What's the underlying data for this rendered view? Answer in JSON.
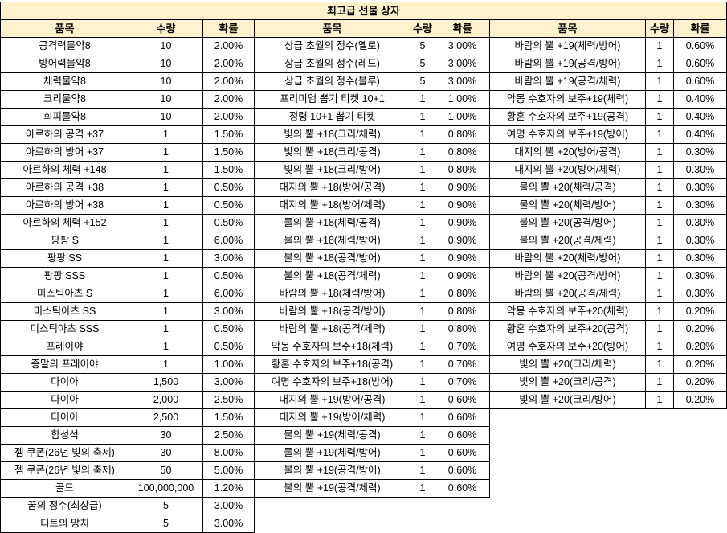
{
  "title": "최고급 선물 상자",
  "colors": {
    "header_bg": "#fff2cc",
    "border": "#000000"
  },
  "headers": {
    "item": "품목",
    "qty": "수량",
    "rate": "확률"
  },
  "groups": [
    {
      "rows": [
        [
          "공격력물약8",
          "10",
          "2.00%"
        ],
        [
          "방어력물약8",
          "10",
          "2.00%"
        ],
        [
          "체력물약8",
          "10",
          "2.00%"
        ],
        [
          "크리물약8",
          "10",
          "2.00%"
        ],
        [
          "회피물약8",
          "10",
          "2.00%"
        ],
        [
          "아르하의 공격 +37",
          "1",
          "1.50%"
        ],
        [
          "아르하의 방어 +37",
          "1",
          "1.50%"
        ],
        [
          "아르하의 체력 +148",
          "1",
          "1.50%"
        ],
        [
          "아르하의 공격 +38",
          "1",
          "0.50%"
        ],
        [
          "아르하의 방어 +38",
          "1",
          "0.50%"
        ],
        [
          "아르하의 체력 +152",
          "1",
          "0.50%"
        ],
        [
          "팡팡 S",
          "1",
          "6.00%"
        ],
        [
          "팡팡 SS",
          "1",
          "3.00%"
        ],
        [
          "팡팡 SSS",
          "1",
          "0.50%"
        ],
        [
          "미스틱아츠 S",
          "1",
          "6.00%"
        ],
        [
          "미스틱아츠 SS",
          "1",
          "3.00%"
        ],
        [
          "미스틱아츠 SSS",
          "1",
          "0.50%"
        ],
        [
          "프레이야",
          "1",
          "0.50%"
        ],
        [
          "종말의 프레이야",
          "1",
          "1.00%"
        ],
        [
          "다이아",
          "1,500",
          "3.00%"
        ],
        [
          "다이아",
          "2,000",
          "2.50%"
        ],
        [
          "다이아",
          "2,500",
          "1.50%"
        ],
        [
          "합성석",
          "30",
          "2.50%"
        ],
        [
          "젬 쿠폰(26년 빛의 축제)",
          "30",
          "8.00%"
        ],
        [
          "젬 쿠폰(26년 빛의 축제)",
          "50",
          "5.00%"
        ],
        [
          "골드",
          "100,000,000",
          "1.20%"
        ],
        [
          "꿈의 정수(최상급)",
          "5",
          "3.00%"
        ],
        [
          "디트의 망치",
          "5",
          "3.00%"
        ]
      ]
    },
    {
      "rows": [
        [
          "상급 초월의 정수(옐로)",
          "5",
          "3.00%"
        ],
        [
          "상급 초월의 정수(레드)",
          "5",
          "3.00%"
        ],
        [
          "상급 초월의 정수(블루)",
          "5",
          "3.00%"
        ],
        [
          "프리미엄 뽑기 티켓 10+1",
          "1",
          "1.00%"
        ],
        [
          "정령 10+1 뽑기 티켓",
          "1",
          "1.00%"
        ],
        [
          "빛의 뿔 +18(크리/체력)",
          "1",
          "0.80%"
        ],
        [
          "빛의 뿔 +18(크리/공격)",
          "1",
          "0.80%"
        ],
        [
          "빛의 뿔 +18(크리/방어)",
          "1",
          "0.80%"
        ],
        [
          "대지의 뿔 +18(방어/공격)",
          "1",
          "0.90%"
        ],
        [
          "대지의 뿔 +18(방어/체력)",
          "1",
          "0.90%"
        ],
        [
          "물의 뿔 +18(체력/공격)",
          "1",
          "0.90%"
        ],
        [
          "물의 뿔 +18(체력/방어)",
          "1",
          "0.90%"
        ],
        [
          "불의 뿔 +18(공격/방어)",
          "1",
          "0.90%"
        ],
        [
          "불의 뿔 +18(공격/체력)",
          "1",
          "0.90%"
        ],
        [
          "바람의 뿔 +18(체력/방어)",
          "1",
          "0.80%"
        ],
        [
          "바람의 뿔 +18(공격/방어)",
          "1",
          "0.80%"
        ],
        [
          "바람의 뿔 +18(공격/체력)",
          "1",
          "0.80%"
        ],
        [
          "악몽 수호자의 보주+18(체력)",
          "1",
          "0.70%"
        ],
        [
          "황혼 수호자의 보주+18(공격)",
          "1",
          "0.70%"
        ],
        [
          "여명 수호자의 보주+18(방어)",
          "1",
          "0.70%"
        ],
        [
          "대지의 뿔 +19(방어/공격)",
          "1",
          "0.60%"
        ],
        [
          "대지의 뿔 +19(방어/체력)",
          "1",
          "0.60%"
        ],
        [
          "물의 뿔 +19(체력/공격)",
          "1",
          "0.60%"
        ],
        [
          "물의 뿔 +19(체력/방어)",
          "1",
          "0.60%"
        ],
        [
          "불의 뿔 +19(공격/방어)",
          "1",
          "0.60%"
        ],
        [
          "불의 뿔 +19(공격/체력)",
          "1",
          "0.60%"
        ]
      ]
    },
    {
      "rows": [
        [
          "바람의 뿔 +19(체력/방어)",
          "1",
          "0.60%"
        ],
        [
          "바람의 뿔 +19(공격/방어)",
          "1",
          "0.60%"
        ],
        [
          "바람의 뿔 +19(공격/체력)",
          "1",
          "0.60%"
        ],
        [
          "악몽 수호자의 보주+19(체력)",
          "1",
          "0.40%"
        ],
        [
          "황혼 수호자의 보주+19(공격)",
          "1",
          "0.40%"
        ],
        [
          "여명 수호자의 보주+19(방어)",
          "1",
          "0.40%"
        ],
        [
          "대지의 뿔 +20(방어/공격)",
          "1",
          "0.30%"
        ],
        [
          "대지의 뿔 +20(방어/체력)",
          "1",
          "0.30%"
        ],
        [
          "물의 뿔 +20(체력/공격)",
          "1",
          "0.30%"
        ],
        [
          "물의 뿔 +20(체력/방어)",
          "1",
          "0.30%"
        ],
        [
          "불의 뿔 +20(공격/방어)",
          "1",
          "0.30%"
        ],
        [
          "불의 뿔 +20(공격/체력)",
          "1",
          "0.30%"
        ],
        [
          "바람의 뿔 +20(체력/방어)",
          "1",
          "0.30%"
        ],
        [
          "바람의 뿔 +20(공격/방어)",
          "1",
          "0.30%"
        ],
        [
          "바람의 뿔 +20(공격/체력)",
          "1",
          "0.30%"
        ],
        [
          "악몽 수호자의 보주+20(체력)",
          "1",
          "0.20%"
        ],
        [
          "황혼 수호자의 보주+20(공격)",
          "1",
          "0.20%"
        ],
        [
          "여명 수호자의 보주+20(방어)",
          "1",
          "0.20%"
        ],
        [
          "빛의 뿔 +20(크리/체력)",
          "1",
          "0.20%"
        ],
        [
          "빛의 뿔 +20(크리/공격)",
          "1",
          "0.20%"
        ],
        [
          "빛의 뿔 +20(크리/방어)",
          "1",
          "0.20%"
        ]
      ]
    }
  ]
}
